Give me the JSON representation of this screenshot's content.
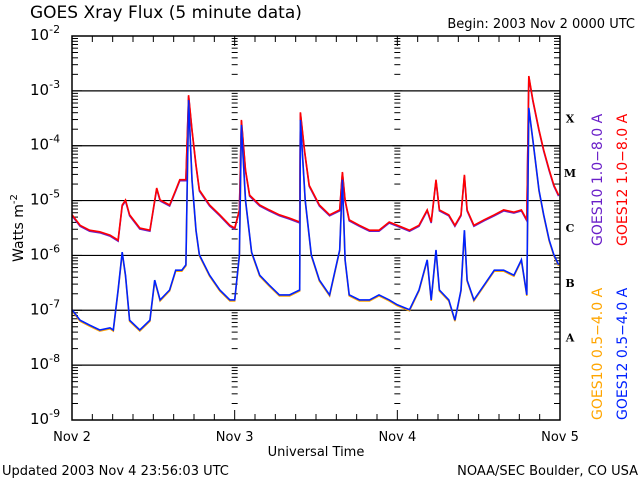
{
  "chart_data": {
    "type": "line",
    "title": "GOES Xray Flux (5 minute data)",
    "begin_label": "Begin:  2003 Nov 2 0000 UTC",
    "xlabel": "Universal Time",
    "ylabel": "Watts m",
    "ylabel_sup": "-2",
    "x_unit": "hours since 2003 Nov 2 0000 UTC",
    "xlim": [
      0,
      72
    ],
    "x_ticks": [
      {
        "hour": 0,
        "label": "Nov 2"
      },
      {
        "hour": 24,
        "label": "Nov 3"
      },
      {
        "hour": 48,
        "label": "Nov 4"
      },
      {
        "hour": 72,
        "label": "Nov 5"
      }
    ],
    "y_scale": "log",
    "ylim_log10": [
      -9,
      -2
    ],
    "y_ticks": [
      {
        "base": "10",
        "exp": "-2",
        "log": -2
      },
      {
        "base": "10",
        "exp": "-3",
        "log": -3
      },
      {
        "base": "10",
        "exp": "-4",
        "log": -4
      },
      {
        "base": "10",
        "exp": "-5",
        "log": -5
      },
      {
        "base": "10",
        "exp": "-6",
        "log": -6
      },
      {
        "base": "10",
        "exp": "-7",
        "log": -7
      },
      {
        "base": "10",
        "exp": "-8",
        "log": -8
      },
      {
        "base": "10",
        "exp": "-9",
        "log": -9
      }
    ],
    "gridlines_log10": [
      -3,
      -4,
      -5,
      -6,
      -7,
      -8
    ],
    "flare_classes": [
      {
        "label": "X",
        "log": -3.5
      },
      {
        "label": "M",
        "log": -4.5
      },
      {
        "label": "C",
        "log": -5.5
      },
      {
        "label": "B",
        "log": -6.5
      },
      {
        "label": "A",
        "log": -7.5
      }
    ],
    "series": [
      {
        "name": "GOES10 1.0−8.0 A",
        "color": "#6a1fc8",
        "ref": "long"
      },
      {
        "name": "GOES12 1.0−8.0 A",
        "color": "#ff0000",
        "ref": "long"
      },
      {
        "name": "GOES10 0.5−4.0 A",
        "color": "#ffa500",
        "ref": "short"
      },
      {
        "name": "GOES12 0.5−4.0 A",
        "color": "#0022ff",
        "ref": "short"
      }
    ],
    "data_log10": {
      "long": [
        [
          0,
          -5.26
        ],
        [
          1.2,
          -5.45
        ],
        [
          2.6,
          -5.54
        ],
        [
          4.1,
          -5.57
        ],
        [
          5.6,
          -5.63
        ],
        [
          6.8,
          -5.72
        ],
        [
          7.4,
          -5.08
        ],
        [
          7.9,
          -4.99
        ],
        [
          8.5,
          -5.26
        ],
        [
          10.0,
          -5.5
        ],
        [
          11.5,
          -5.54
        ],
        [
          12.5,
          -4.77
        ],
        [
          13.0,
          -4.99
        ],
        [
          14.4,
          -5.08
        ],
        [
          15.3,
          -4.81
        ],
        [
          15.9,
          -4.62
        ],
        [
          16.8,
          -4.62
        ],
        [
          17.2,
          -3.08
        ],
        [
          17.7,
          -3.71
        ],
        [
          18.3,
          -4.35
        ],
        [
          18.8,
          -4.81
        ],
        [
          20.3,
          -5.08
        ],
        [
          21.8,
          -5.26
        ],
        [
          23.3,
          -5.45
        ],
        [
          24.0,
          -5.5
        ],
        [
          24.7,
          -5.17
        ],
        [
          25.0,
          -3.53
        ],
        [
          25.6,
          -4.44
        ],
        [
          26.2,
          -4.9
        ],
        [
          27.7,
          -5.08
        ],
        [
          29.1,
          -5.17
        ],
        [
          30.6,
          -5.26
        ],
        [
          32.1,
          -5.32
        ],
        [
          33.6,
          -5.39
        ],
        [
          33.7,
          -3.39
        ],
        [
          34.3,
          -4.08
        ],
        [
          35.0,
          -4.72
        ],
        [
          36.5,
          -5.08
        ],
        [
          38.0,
          -5.26
        ],
        [
          39.5,
          -5.17
        ],
        [
          39.9,
          -4.48
        ],
        [
          40.3,
          -4.99
        ],
        [
          40.9,
          -5.35
        ],
        [
          42.4,
          -5.45
        ],
        [
          43.9,
          -5.54
        ],
        [
          45.3,
          -5.54
        ],
        [
          46.8,
          -5.39
        ],
        [
          48.0,
          -5.45
        ],
        [
          49.0,
          -5.5
        ],
        [
          49.8,
          -5.54
        ],
        [
          51.2,
          -5.45
        ],
        [
          52.4,
          -5.17
        ],
        [
          53.0,
          -5.39
        ],
        [
          53.7,
          -4.62
        ],
        [
          54.2,
          -5.17
        ],
        [
          55.6,
          -5.26
        ],
        [
          56.5,
          -5.45
        ],
        [
          57.4,
          -5.26
        ],
        [
          57.9,
          -4.53
        ],
        [
          58.3,
          -5.17
        ],
        [
          59.3,
          -5.45
        ],
        [
          60.8,
          -5.35
        ],
        [
          62.3,
          -5.26
        ],
        [
          63.7,
          -5.17
        ],
        [
          65.2,
          -5.21
        ],
        [
          66.3,
          -5.17
        ],
        [
          67.1,
          -5.35
        ],
        [
          67.4,
          -2.73
        ],
        [
          68.0,
          -3.17
        ],
        [
          68.9,
          -3.71
        ],
        [
          69.6,
          -4.08
        ],
        [
          70.4,
          -4.44
        ],
        [
          71.1,
          -4.72
        ],
        [
          71.8,
          -4.9
        ]
      ],
      "short": [
        [
          0,
          -6.99
        ],
        [
          1.2,
          -7.18
        ],
        [
          2.6,
          -7.27
        ],
        [
          4.1,
          -7.36
        ],
        [
          5.6,
          -7.32
        ],
        [
          6.1,
          -7.36
        ],
        [
          6.8,
          -6.63
        ],
        [
          7.4,
          -5.94
        ],
        [
          7.9,
          -6.36
        ],
        [
          8.5,
          -7.18
        ],
        [
          10.0,
          -7.36
        ],
        [
          11.5,
          -7.18
        ],
        [
          12.2,
          -6.45
        ],
        [
          13.0,
          -6.81
        ],
        [
          14.4,
          -6.63
        ],
        [
          15.3,
          -6.27
        ],
        [
          16.2,
          -6.27
        ],
        [
          16.8,
          -6.17
        ],
        [
          17.2,
          -3.17
        ],
        [
          17.7,
          -4.62
        ],
        [
          18.3,
          -5.54
        ],
        [
          18.8,
          -5.99
        ],
        [
          20.3,
          -6.36
        ],
        [
          21.8,
          -6.63
        ],
        [
          23.3,
          -6.81
        ],
        [
          24.0,
          -6.81
        ],
        [
          24.7,
          -5.99
        ],
        [
          25.0,
          -3.62
        ],
        [
          25.6,
          -4.99
        ],
        [
          26.5,
          -5.94
        ],
        [
          27.7,
          -6.36
        ],
        [
          29.1,
          -6.54
        ],
        [
          30.6,
          -6.72
        ],
        [
          32.1,
          -6.72
        ],
        [
          33.6,
          -6.63
        ],
        [
          33.7,
          -3.53
        ],
        [
          34.4,
          -4.99
        ],
        [
          35.3,
          -5.99
        ],
        [
          36.5,
          -6.45
        ],
        [
          38.0,
          -6.72
        ],
        [
          39.5,
          -5.9
        ],
        [
          39.9,
          -4.62
        ],
        [
          40.3,
          -6.08
        ],
        [
          40.9,
          -6.72
        ],
        [
          42.4,
          -6.81
        ],
        [
          43.9,
          -6.81
        ],
        [
          45.3,
          -6.72
        ],
        [
          46.8,
          -6.81
        ],
        [
          48.0,
          -6.9
        ],
        [
          49.8,
          -6.99
        ],
        [
          51.2,
          -6.63
        ],
        [
          52.4,
          -6.08
        ],
        [
          53.0,
          -6.81
        ],
        [
          53.7,
          -5.9
        ],
        [
          54.2,
          -6.63
        ],
        [
          55.6,
          -6.81
        ],
        [
          56.5,
          -7.18
        ],
        [
          57.4,
          -6.63
        ],
        [
          57.9,
          -5.54
        ],
        [
          58.3,
          -6.45
        ],
        [
          59.3,
          -6.81
        ],
        [
          60.8,
          -6.54
        ],
        [
          62.3,
          -6.27
        ],
        [
          63.7,
          -6.27
        ],
        [
          65.2,
          -6.36
        ],
        [
          66.3,
          -6.08
        ],
        [
          67.1,
          -6.72
        ],
        [
          67.4,
          -3.31
        ],
        [
          68.0,
          -3.9
        ],
        [
          68.9,
          -4.81
        ],
        [
          69.6,
          -5.26
        ],
        [
          70.4,
          -5.72
        ],
        [
          71.1,
          -5.99
        ],
        [
          71.8,
          -6.17
        ]
      ]
    },
    "footer_left": "Updated 2003 Nov  4 23:56:03 UTC",
    "footer_right": "NOAA/SEC Boulder, CO USA"
  }
}
